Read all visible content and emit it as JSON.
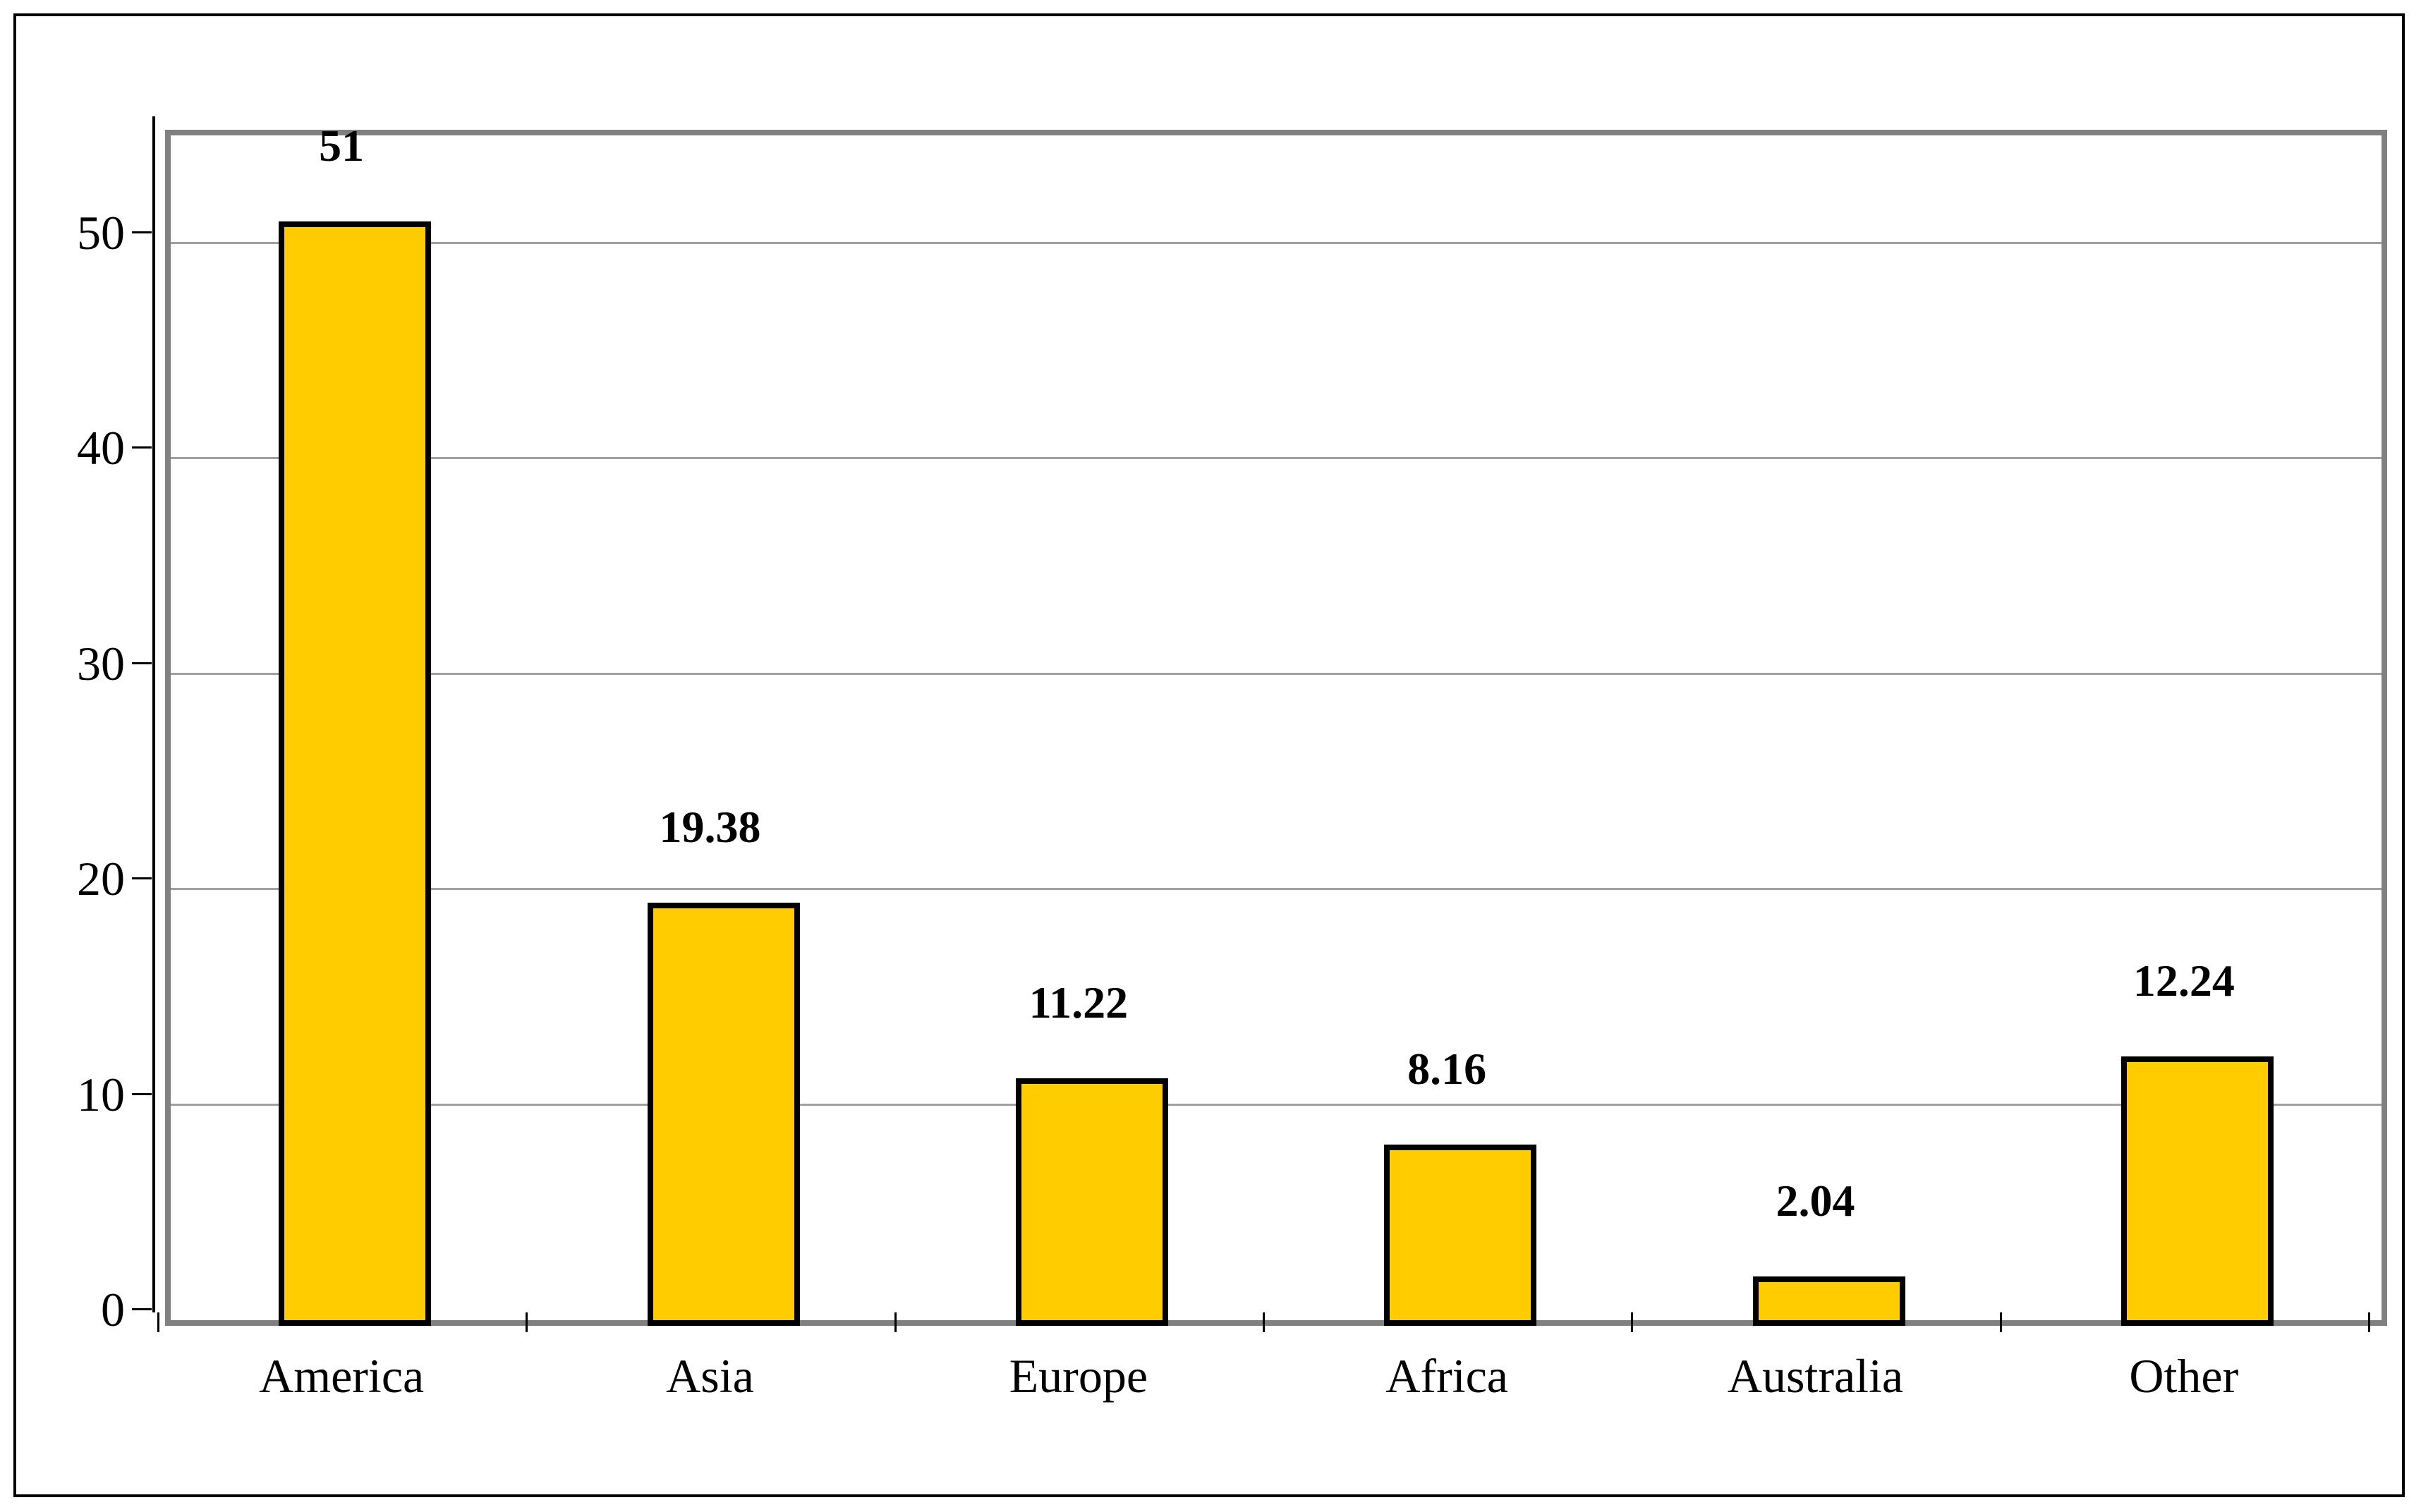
{
  "chart_data": {
    "type": "bar",
    "title": "",
    "xlabel": "",
    "ylabel": "",
    "categories": [
      "America",
      "Asia",
      "Europe",
      "Africa",
      "Australia",
      "Other"
    ],
    "values": [
      51,
      19.38,
      11.22,
      8.16,
      2.04,
      12.24
    ],
    "value_labels": [
      "51",
      "19.38",
      "11.22",
      "8.16",
      "2.04",
      "12.24"
    ],
    "ylim": [
      0,
      55
    ],
    "yticks": [
      0,
      10,
      20,
      30,
      40,
      50
    ],
    "grid": true,
    "legend_position": "none",
    "colors": {
      "bar_fill": "#FFCC00",
      "bar_border": "#000000",
      "plot_border": "#808080",
      "gridline": "#A0A0A0",
      "axis_line": "#000000",
      "background": "#FFFFFF",
      "text": "#000000"
    }
  }
}
